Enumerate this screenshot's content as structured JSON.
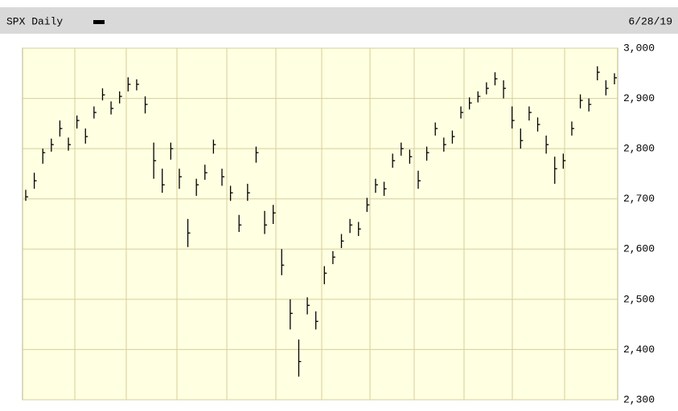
{
  "chart_data": {
    "type": "ohlc",
    "title": "SPX Daily",
    "date": "6/28/19",
    "color": "#000000",
    "ylim": [
      2300,
      3000
    ],
    "yticks": [
      {
        "value": 2300,
        "label": "2,300"
      },
      {
        "value": 2400,
        "label": "2,400"
      },
      {
        "value": 2500,
        "label": "2,500"
      },
      {
        "value": 2600,
        "label": "2,600"
      },
      {
        "value": 2700,
        "label": "2,700"
      },
      {
        "value": 2800,
        "label": "2,800"
      },
      {
        "value": 2900,
        "label": "2,900"
      },
      {
        "value": 3000,
        "label": "3,000"
      }
    ],
    "grid": true,
    "high": [
      2718,
      2752,
      2800,
      2820,
      2856,
      2822,
      2866,
      2840,
      2884,
      2920,
      2894,
      2914,
      2942,
      2938,
      2904,
      2812,
      2760,
      2812,
      2760,
      2660,
      2740,
      2768,
      2818,
      2760,
      2726,
      2668,
      2730,
      2804,
      2676,
      2688,
      2600,
      2500,
      2420,
      2504,
      2476,
      2566,
      2596,
      2630,
      2660,
      2654,
      2702,
      2740,
      2734,
      2790,
      2812,
      2798,
      2756,
      2804,
      2852,
      2822,
      2836,
      2884,
      2902,
      2914,
      2932,
      2952,
      2936,
      2884,
      2840,
      2884,
      2862,
      2826,
      2784,
      2790,
      2854,
      2908,
      2900,
      2964,
      2936,
      2950
    ],
    "low": [
      2696,
      2720,
      2770,
      2794,
      2824,
      2796,
      2840,
      2810,
      2860,
      2896,
      2868,
      2890,
      2914,
      2916,
      2870,
      2740,
      2712,
      2778,
      2720,
      2604,
      2706,
      2738,
      2790,
      2726,
      2696,
      2634,
      2696,
      2772,
      2630,
      2650,
      2548,
      2440,
      2346,
      2470,
      2440,
      2530,
      2570,
      2602,
      2632,
      2626,
      2674,
      2712,
      2706,
      2762,
      2786,
      2770,
      2720,
      2776,
      2826,
      2794,
      2810,
      2860,
      2878,
      2892,
      2908,
      2926,
      2900,
      2840,
      2800,
      2856,
      2834,
      2790,
      2730,
      2760,
      2826,
      2880,
      2874,
      2936,
      2906,
      2928
    ],
    "close": [
      2704,
      2736,
      2792,
      2808,
      2840,
      2808,
      2856,
      2824,
      2872,
      2907,
      2880,
      2904,
      2928,
      2928,
      2888,
      2776,
      2728,
      2800,
      2744,
      2632,
      2728,
      2752,
      2808,
      2744,
      2712,
      2648,
      2712,
      2792,
      2648,
      2672,
      2568,
      2472,
      2376,
      2488,
      2456,
      2552,
      2584,
      2616,
      2648,
      2640,
      2688,
      2728,
      2720,
      2776,
      2800,
      2784,
      2736,
      2792,
      2840,
      2808,
      2824,
      2872,
      2891,
      2904,
      2920,
      2939,
      2920,
      2856,
      2816,
      2872,
      2848,
      2808,
      2760,
      2776,
      2840,
      2896,
      2888,
      2952,
      2920,
      2941
    ]
  }
}
